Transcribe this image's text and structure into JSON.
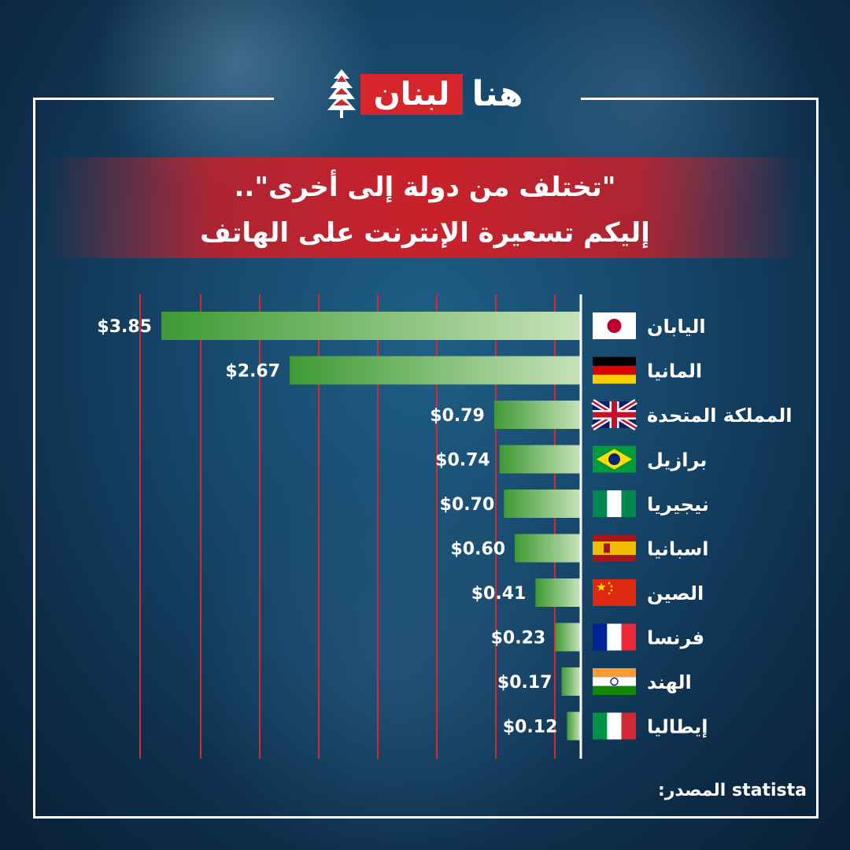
{
  "brand": {
    "logo_red_text": "لبنان",
    "logo_white_text": "هنا"
  },
  "title": {
    "line1": "\"تختلف من دولة إلى أخرى\"..",
    "line2": "إليكم تسعيرة الإنترنت على الهاتف"
  },
  "source": {
    "label": "المصدر:",
    "value": "statista"
  },
  "colors": {
    "bar_dark": "#3e9a34",
    "bar_light": "#c6e2b8",
    "grid": "#d42a36",
    "title_band": "#c9212b"
  },
  "chart_data": {
    "type": "bar",
    "orientation": "horizontal",
    "title": "\"تختلف من دولة إلى أخرى\".. إليكم تسعيرة الإنترنت على الهاتف",
    "categories": [
      "اليابان",
      "المانيا",
      "المملكة المتحدة",
      "برازيل",
      "نيجيريا",
      "اسبانيا",
      "الصين",
      "فرنسا",
      "الهند",
      "إيطاليا"
    ],
    "flag_icons": [
      "flag-japan-icon",
      "flag-germany-icon",
      "flag-uk-icon",
      "flag-brazil-icon",
      "flag-nigeria-icon",
      "flag-spain-icon",
      "flag-china-icon",
      "flag-france-icon",
      "flag-india-icon",
      "flag-italy-icon"
    ],
    "values": [
      3.85,
      2.67,
      0.79,
      0.74,
      0.7,
      0.6,
      0.41,
      0.23,
      0.17,
      0.12
    ],
    "value_labels": [
      "$3.85",
      "$2.67",
      "$0.79",
      "$0.74",
      "$0.70",
      "$0.60",
      "$0.41",
      "$0.23",
      "$0.17",
      "$0.12"
    ],
    "xlabel": "",
    "ylabel": "",
    "xlim": [
      0,
      3.85
    ],
    "grid": true,
    "legend": "none"
  }
}
